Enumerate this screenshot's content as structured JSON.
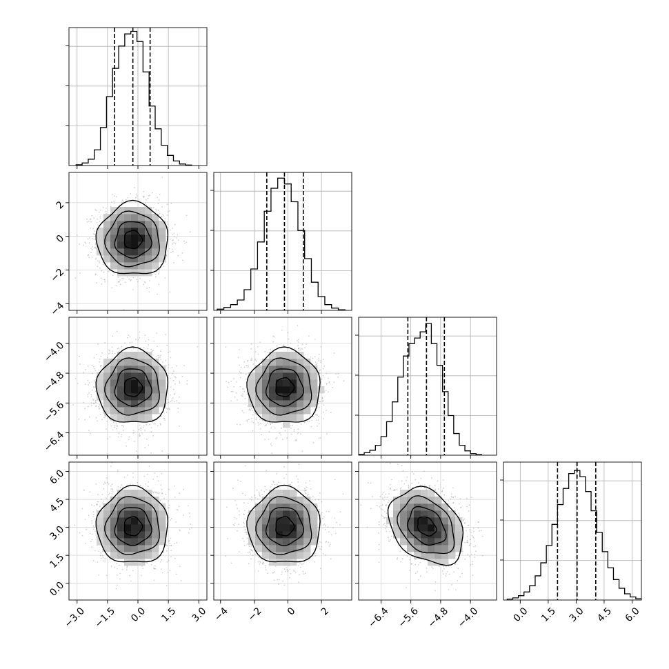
{
  "chart_data": {
    "type": "corner",
    "parameters": [
      {
        "index": 0,
        "xlim": [
          -3.4,
          3.4
        ],
        "ticks": [
          -3.0,
          -1.5,
          0.0,
          1.5,
          3.0
        ],
        "tick_labels": [
          "−3.0",
          "−1.5",
          "0.0",
          "1.5",
          "3.0"
        ],
        "quantiles": {
          "q16": -1.15,
          "q50": -0.25,
          "q84": 0.6
        },
        "histogram": {
          "bins": [
            -3.05,
            -2.75,
            -2.45,
            -2.15,
            -1.85,
            -1.55,
            -1.25,
            -0.95,
            -0.65,
            -0.35,
            -0.05,
            0.25,
            0.55,
            0.85,
            1.15,
            1.45,
            1.75,
            2.05,
            2.35,
            2.65
          ],
          "counts": [
            3,
            10,
            25,
            62,
            150,
            272,
            384,
            472,
            520,
            530,
            490,
            370,
            235,
            145,
            80,
            40,
            18,
            6,
            2
          ],
          "hist_ylim": [
            0,
            545
          ]
        }
      },
      {
        "index": 1,
        "xlim": [
          -4.4,
          3.8
        ],
        "ticks": [
          -4,
          -2,
          0,
          2
        ],
        "tick_labels": [
          "−4",
          "−2",
          "0",
          "2"
        ],
        "quantiles": {
          "q16": -1.25,
          "q50": -0.2,
          "q84": 0.92
        },
        "histogram": {
          "bins": [
            -4.2,
            -3.8,
            -3.4,
            -3.0,
            -2.6,
            -2.2,
            -1.8,
            -1.4,
            -1.0,
            -0.6,
            -0.2,
            0.2,
            0.6,
            1.0,
            1.4,
            1.8,
            2.2,
            2.6,
            3.0,
            3.4
          ],
          "counts": [
            4,
            10,
            20,
            36,
            72,
            144,
            238,
            345,
            425,
            460,
            440,
            378,
            278,
            180,
            98,
            48,
            20,
            8,
            2
          ],
          "hist_ylim": [
            0,
            480
          ]
        }
      },
      {
        "index": 2,
        "xlim": [
          -7.0,
          -3.3
        ],
        "ticks": [
          -6.4,
          -5.6,
          -4.8,
          -4.0
        ],
        "tick_labels": [
          "−6.4",
          "−5.6",
          "−4.8",
          "−4.0"
        ],
        "quantiles": {
          "q16": -5.68,
          "q50": -5.18,
          "q84": -4.7
        },
        "histogram": {
          "bins": [
            -7.0,
            -6.85,
            -6.7,
            -6.55,
            -6.4,
            -6.25,
            -6.1,
            -5.95,
            -5.8,
            -5.65,
            -5.5,
            -5.35,
            -5.2,
            -5.05,
            -4.9,
            -4.75,
            -4.6,
            -4.45,
            -4.3,
            -4.15,
            -4.0,
            -3.85,
            -3.7
          ],
          "counts": [
            3,
            8,
            16,
            32,
            60,
            108,
            172,
            252,
            320,
            360,
            378,
            398,
            425,
            360,
            290,
            205,
            128,
            70,
            32,
            14,
            5,
            2
          ],
          "hist_ylim": [
            0,
            445
          ]
        }
      },
      {
        "index": 3,
        "xlim": [
          -0.9,
          6.5
        ],
        "ticks": [
          0.0,
          1.5,
          3.0,
          4.5,
          6.0
        ],
        "tick_labels": [
          "0.0",
          "1.5",
          "3.0",
          "4.5",
          "6.0"
        ],
        "quantiles": {
          "q16": 2.0,
          "q50": 3.05,
          "q84": 4.05
        },
        "histogram": {
          "bins": [
            -0.7,
            -0.4,
            -0.1,
            0.2,
            0.5,
            0.8,
            1.1,
            1.4,
            1.7,
            2.0,
            2.3,
            2.6,
            2.9,
            3.2,
            3.5,
            3.8,
            4.1,
            4.4,
            4.7,
            5.0,
            5.3,
            5.6,
            5.9,
            6.2,
            6.5
          ],
          "counts": [
            3,
            7,
            14,
            26,
            46,
            78,
            120,
            176,
            244,
            308,
            360,
            408,
            418,
            398,
            350,
            288,
            218,
            156,
            104,
            66,
            38,
            20,
            10,
            4
          ],
          "hist_ylim": [
            0,
            445
          ]
        }
      }
    ],
    "pairs": [
      {
        "row": 1,
        "col": 0,
        "mean": [
          -0.25,
          -0.2
        ],
        "sd": [
          0.88,
          1.08
        ],
        "rho": 0.0
      },
      {
        "row": 2,
        "col": 0,
        "mean": [
          -0.25,
          -5.18
        ],
        "sd": [
          0.88,
          0.5
        ],
        "rho": 0.0
      },
      {
        "row": 2,
        "col": 1,
        "mean": [
          -0.2,
          -5.18
        ],
        "sd": [
          1.08,
          0.5
        ],
        "rho": 0.0
      },
      {
        "row": 3,
        "col": 0,
        "mean": [
          -0.25,
          3.05
        ],
        "sd": [
          0.88,
          1.02
        ],
        "rho": 0.0
      },
      {
        "row": 3,
        "col": 1,
        "mean": [
          -0.2,
          3.05
        ],
        "sd": [
          1.08,
          1.02
        ],
        "rho": 0.0
      },
      {
        "row": 3,
        "col": 2,
        "mean": [
          -5.18,
          3.05
        ],
        "sd": [
          0.5,
          1.02
        ],
        "rho": -0.3
      }
    ],
    "contour_levels_sigma": [
      0.5,
      1.0,
      1.5,
      2.0
    ],
    "grid": true,
    "colors": {
      "points": "#9a9a9a",
      "contour": "#000000",
      "density_max": "#000000",
      "grid": "#b0b0b0",
      "frame": "#000000"
    }
  }
}
